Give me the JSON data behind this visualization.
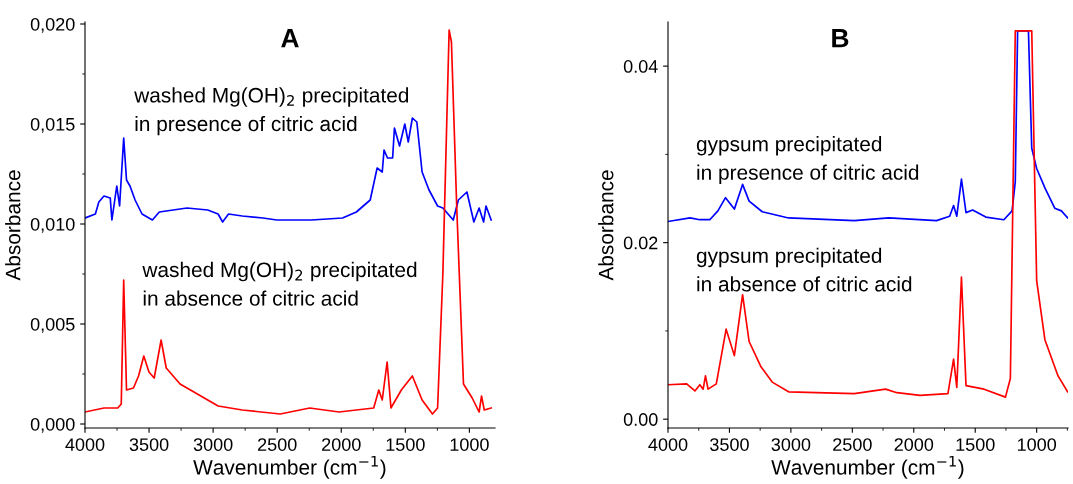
{
  "chart_data": [
    {
      "type": "line",
      "title": "A",
      "xlabel": "Wavenumber (cm$^{−1}$)",
      "ylabel": "Absorbance",
      "xlim": [
        4000,
        800
      ],
      "xticks": [
        4000,
        3500,
        3000,
        2500,
        2000,
        1500,
        1000
      ],
      "ylim": [
        -0.0002,
        0.0201
      ],
      "yticks": [
        {
          "value": 0,
          "label": "0,000"
        },
        {
          "value": 0.005,
          "label": "0,005"
        },
        {
          "value": 0.01,
          "label": "0,010"
        },
        {
          "value": 0.015,
          "label": "0,015"
        },
        {
          "value": 0.02,
          "label": "0,020"
        }
      ],
      "grid": false,
      "legend": false,
      "annotations": [
        "washed Mg(OH)$_{2}$ precipitated\nin presence of citric acid",
        "washed Mg(OH)$_{2}$ precipitated\nin absence of citric acid"
      ],
      "series": [
        {
          "color": "#0000ff",
          "x": [
            4000,
            3919,
            3892,
            3852,
            3803,
            3790,
            3752,
            3730,
            3698,
            3676,
            3649,
            3609,
            3555,
            3474,
            3420,
            3204,
            3042,
            2961,
            2926,
            2880,
            2772,
            2611,
            2503,
            2233,
            1990,
            1882,
            1774,
            1720,
            1680,
            1666,
            1639,
            1599,
            1585,
            1545,
            1504,
            1477,
            1445,
            1410,
            1369,
            1315,
            1248,
            1207,
            1126,
            1086,
            1019,
            965,
            924,
            889,
            870,
            830
          ],
          "values": [
            0.0103,
            0.0105,
            0.0111,
            0.0114,
            0.0113,
            0.0102,
            0.0119,
            0.0109,
            0.0143,
            0.0122,
            0.0119,
            0.0112,
            0.0105,
            0.0102,
            0.0106,
            0.0108,
            0.0107,
            0.0105,
            0.0101,
            0.0105,
            0.0104,
            0.0103,
            0.0102,
            0.0102,
            0.0103,
            0.0106,
            0.0112,
            0.0128,
            0.0126,
            0.0137,
            0.0133,
            0.0133,
            0.0148,
            0.0139,
            0.015,
            0.0141,
            0.0153,
            0.0151,
            0.0126,
            0.0117,
            0.0109,
            0.0108,
            0.0102,
            0.0112,
            0.0116,
            0.0101,
            0.0108,
            0.0101,
            0.0109,
            0.0102
          ]
        },
        {
          "color": "#ff0000",
          "x": [
            4000,
            3852,
            3744,
            3717,
            3698,
            3676,
            3622,
            3582,
            3541,
            3501,
            3460,
            3406,
            3366,
            3258,
            3096,
            2961,
            2772,
            2476,
            2246,
            2017,
            1747,
            1707,
            1680,
            1642,
            1612,
            1531,
            1445,
            1369,
            1288,
            1248,
            1207,
            1158,
            1140,
            1099,
            1046,
            978,
            924,
            905,
            884,
            830
          ],
          "values": [
            0.0006,
            0.0008,
            0.0008,
            0.001,
            0.0072,
            0.0017,
            0.0018,
            0.0024,
            0.0034,
            0.0026,
            0.0023,
            0.0042,
            0.0028,
            0.002,
            0.0014,
            0.0009,
            0.0007,
            0.0005,
            0.0008,
            0.0006,
            0.0008,
            0.0017,
            0.0012,
            0.0031,
            0.0008,
            0.0017,
            0.0024,
            0.0012,
            0.0005,
            0.0008,
            0.0075,
            0.0197,
            0.0191,
            0.0109,
            0.002,
            0.0013,
            0.0006,
            0.0014,
            0.0007,
            0.0008
          ]
        }
      ]
    },
    {
      "type": "line",
      "title": "B",
      "xlabel": "Wavenumber (cm$^{−1}$)",
      "ylabel": "Absorbance",
      "xlim": [
        4000,
        745
      ],
      "xticks": [
        4000,
        3500,
        3000,
        2500,
        2000,
        1500,
        1000
      ],
      "ylim": [
        -0.001,
        0.045
      ],
      "yticks": [
        {
          "value": 0,
          "label": "0.00"
        },
        {
          "value": 0.02,
          "label": "0.02"
        },
        {
          "value": 0.04,
          "label": "0.04"
        }
      ],
      "grid": false,
      "legend": false,
      "annotations": [
        "gypsum precipitated\nin presence of citric acid",
        "gypsum precipitated\nin absence of citric acid"
      ],
      "series": [
        {
          "color": "#0000ff",
          "x": [
            4000,
            3821,
            3741,
            3660,
            3594,
            3532,
            3460,
            3393,
            3340,
            3233,
            3019,
            2484,
            2203,
            1815,
            1708,
            1676,
            1650,
            1612,
            1575,
            1521,
            1414,
            1267,
            1200,
            1174,
            1155,
            1067,
            1040,
            1000,
            933,
            853,
            799,
            748
          ],
          "values": [
            0.0224,
            0.0228,
            0.0226,
            0.0226,
            0.0236,
            0.0251,
            0.0238,
            0.0266,
            0.0247,
            0.0235,
            0.0228,
            0.0225,
            0.0228,
            0.0225,
            0.023,
            0.0242,
            0.023,
            0.0272,
            0.0234,
            0.0237,
            0.0229,
            0.0226,
            0.0236,
            0.0269,
            0.044,
            0.044,
            0.0307,
            0.0284,
            0.0262,
            0.0239,
            0.0236,
            0.0228
          ]
        },
        {
          "color": "#ff0000",
          "x": [
            4000,
            3848,
            3781,
            3741,
            3714,
            3695,
            3674,
            3607,
            3527,
            3460,
            3393,
            3340,
            3246,
            3152,
            3019,
            2484,
            2230,
            2137,
            1949,
            1722,
            1676,
            1650,
            1612,
            1575,
            1428,
            1254,
            1214,
            1174,
            1040,
            1000,
            933,
            826,
            748
          ],
          "values": [
            0.0039,
            0.004,
            0.0032,
            0.0039,
            0.0034,
            0.0049,
            0.0034,
            0.004,
            0.0102,
            0.0072,
            0.0141,
            0.0088,
            0.006,
            0.0042,
            0.0031,
            0.0029,
            0.0034,
            0.003,
            0.0027,
            0.0029,
            0.0068,
            0.0036,
            0.0161,
            0.0038,
            0.0034,
            0.0025,
            0.0046,
            0.044,
            0.044,
            0.0157,
            0.009,
            0.0049,
            0.0031
          ]
        }
      ]
    }
  ]
}
